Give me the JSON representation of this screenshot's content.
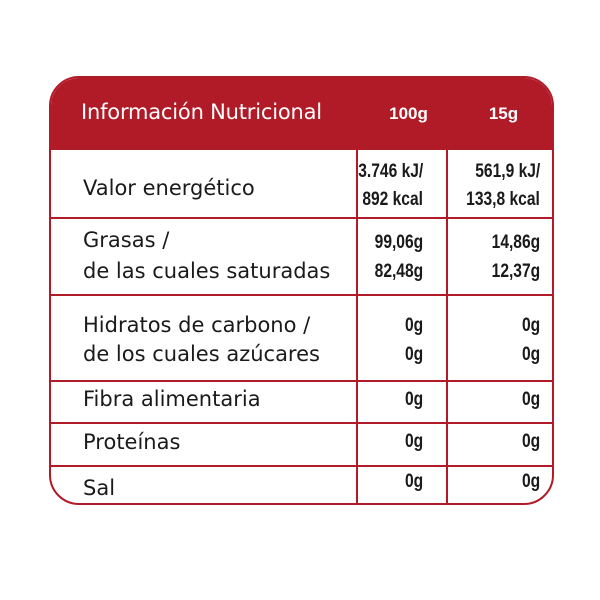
{
  "header": {
    "title": "Información Nutricional",
    "col_100g": "100g",
    "col_15g": "15g"
  },
  "rows": [
    {
      "label_1": "Valor energético",
      "v100_1": "3.746 kJ/",
      "v100_2": "892 kcal",
      "v15_1": "561,9 kJ/",
      "v15_2": "133,8 kcal"
    },
    {
      "label_1": "Grasas /",
      "label_2": "de las cuales saturadas",
      "v100_1": "99,06g",
      "v100_2": "82,48g",
      "v15_1": "14,86g",
      "v15_2": "12,37g"
    },
    {
      "label_1": "Hidratos de carbono /",
      "label_2": "de los cuales azúcares",
      "v100_1": "0g",
      "v100_2": "0g",
      "v15_1": "0g",
      "v15_2": "0g"
    },
    {
      "label_1": "Fibra alimentaria",
      "v100_1": "0g",
      "v15_1": "0g"
    },
    {
      "label_1": "Proteínas",
      "v100_1": "0g",
      "v15_1": "0g"
    },
    {
      "label_1": "Sal",
      "v100_1": "0g",
      "v15_1": "0g"
    }
  ],
  "colors": {
    "accent": "#b01b27",
    "text": "#1a1a1a"
  }
}
